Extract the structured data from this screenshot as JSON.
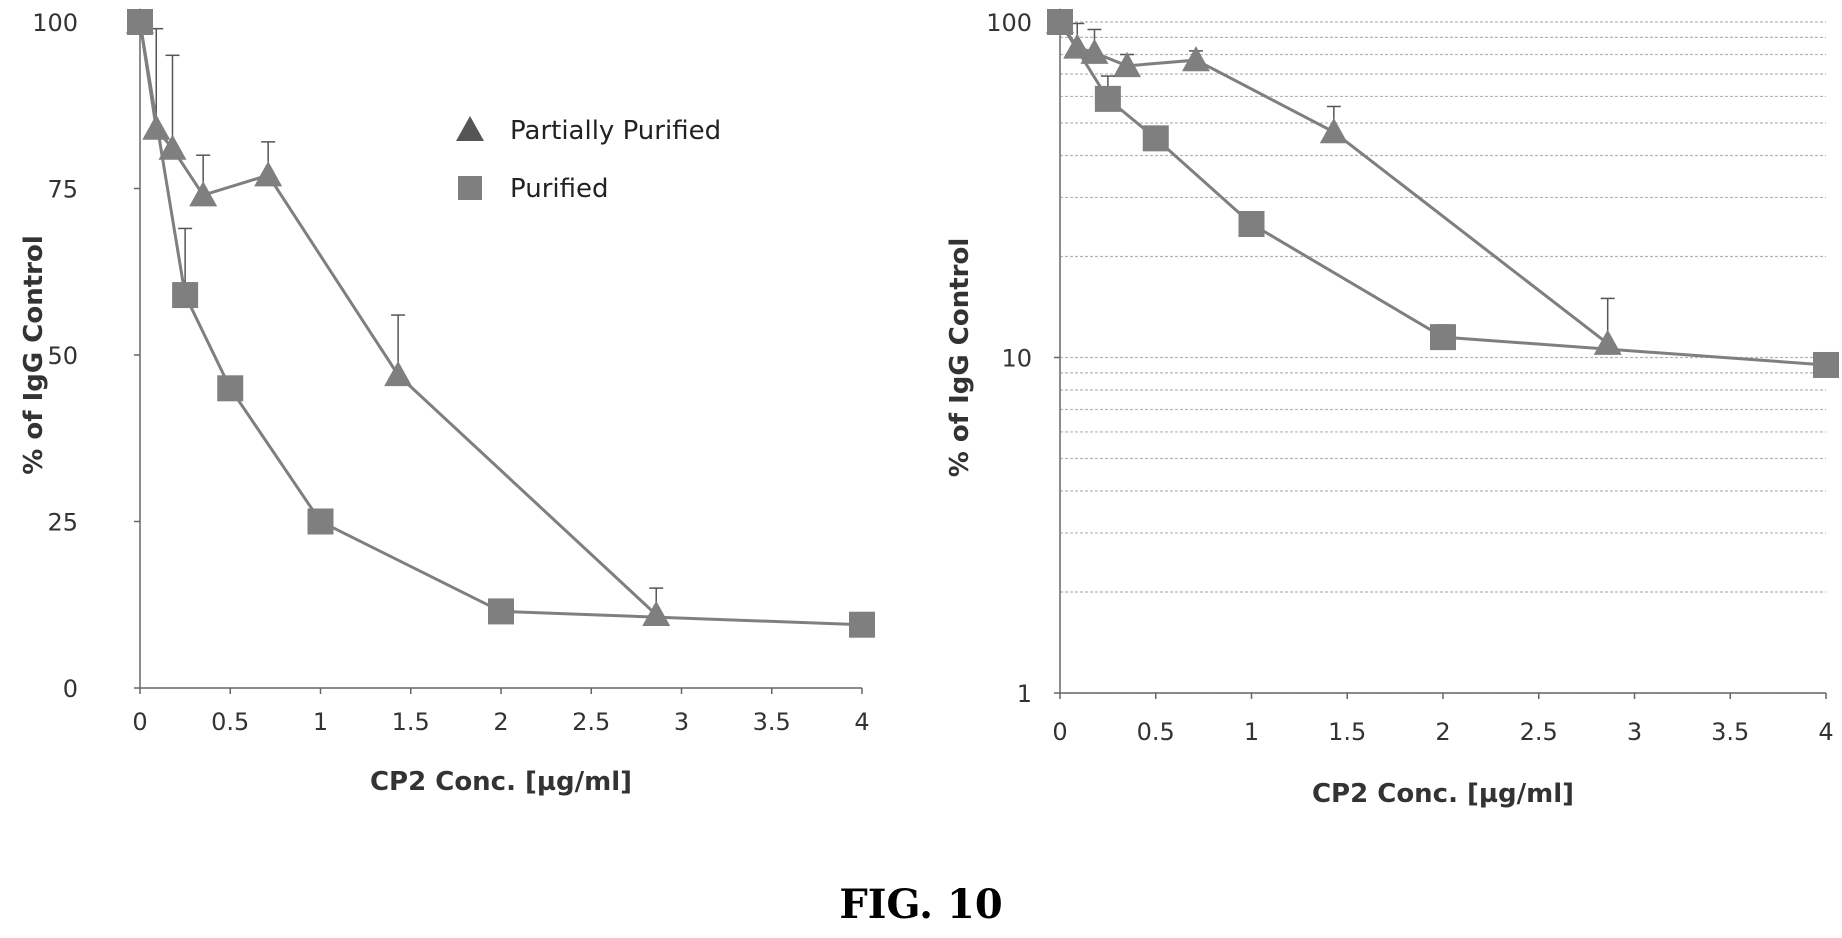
{
  "figure_caption": "FIG. 10",
  "colors": {
    "series": "#7f7f7f",
    "axis": "#666666",
    "grid": "#b4b4b4",
    "error": "#555555"
  },
  "chart_data": [
    {
      "type": "line",
      "scale": "linear",
      "title": "",
      "xlabel": "CP2 Conc. [µg/ml]",
      "ylabel": "% of IgG Control",
      "xlim": [
        0,
        4
      ],
      "ylim": [
        0,
        100
      ],
      "x_ticks": [
        0,
        0.5,
        1,
        1.5,
        2,
        2.5,
        3,
        3.5,
        4
      ],
      "x_tick_labels": [
        "0",
        "0.5",
        "1",
        "1.5",
        "2",
        "2.5",
        "3",
        "3.5",
        "4"
      ],
      "y_ticks": [
        0,
        25,
        50,
        75,
        100
      ],
      "y_tick_labels": [
        "0",
        "25",
        "50",
        "75",
        "100"
      ],
      "grid": false,
      "legend": {
        "position": "top-right",
        "entries": [
          "Partially Purified",
          "Purified"
        ]
      },
      "series": [
        {
          "name": "Partially Purified",
          "marker": "triangle",
          "x": [
            0,
            0.09,
            0.18,
            0.35,
            0.71,
            1.43,
            2.86
          ],
          "values": [
            100,
            84,
            81,
            74,
            77,
            47,
            11
          ],
          "error_upper": [
            100,
            99,
            95,
            80,
            82,
            56,
            15
          ]
        },
        {
          "name": "Purified",
          "marker": "square",
          "x": [
            0,
            0.25,
            0.5,
            1,
            2,
            4
          ],
          "values": [
            100,
            59,
            45,
            25,
            11.5,
            9.5
          ],
          "error_upper": [
            100,
            69,
            46.5,
            25.5,
            12.5,
            10
          ]
        }
      ]
    },
    {
      "type": "line",
      "scale": "log",
      "title": "",
      "xlabel": "CP2 Conc. [µg/ml]",
      "ylabel": "% of IgG Control",
      "xlim": [
        0,
        4
      ],
      "ylim": [
        1,
        100
      ],
      "x_ticks": [
        0,
        0.5,
        1,
        1.5,
        2,
        2.5,
        3,
        3.5,
        4
      ],
      "x_tick_labels": [
        "0",
        "0.5",
        "1",
        "1.5",
        "2",
        "2.5",
        "3",
        "3.5",
        "4"
      ],
      "y_ticks": [
        1,
        10,
        100
      ],
      "y_tick_labels": [
        "1",
        "10",
        "100"
      ],
      "grid": true,
      "legend": null,
      "series": [
        {
          "name": "Partially Purified",
          "marker": "triangle",
          "x": [
            0,
            0.09,
            0.18,
            0.35,
            0.71,
            1.43,
            2.86
          ],
          "values": [
            100,
            84,
            81,
            74,
            77,
            47,
            11
          ],
          "error_upper": [
            100,
            99,
            95,
            80,
            82,
            56,
            15
          ]
        },
        {
          "name": "Purified",
          "marker": "square",
          "x": [
            0,
            0.25,
            0.5,
            1,
            2,
            4
          ],
          "values": [
            100,
            59,
            45,
            25,
            11.5,
            9.5
          ],
          "error_upper": [
            100,
            69,
            46.5,
            25.5,
            12.5,
            10
          ]
        }
      ]
    }
  ]
}
